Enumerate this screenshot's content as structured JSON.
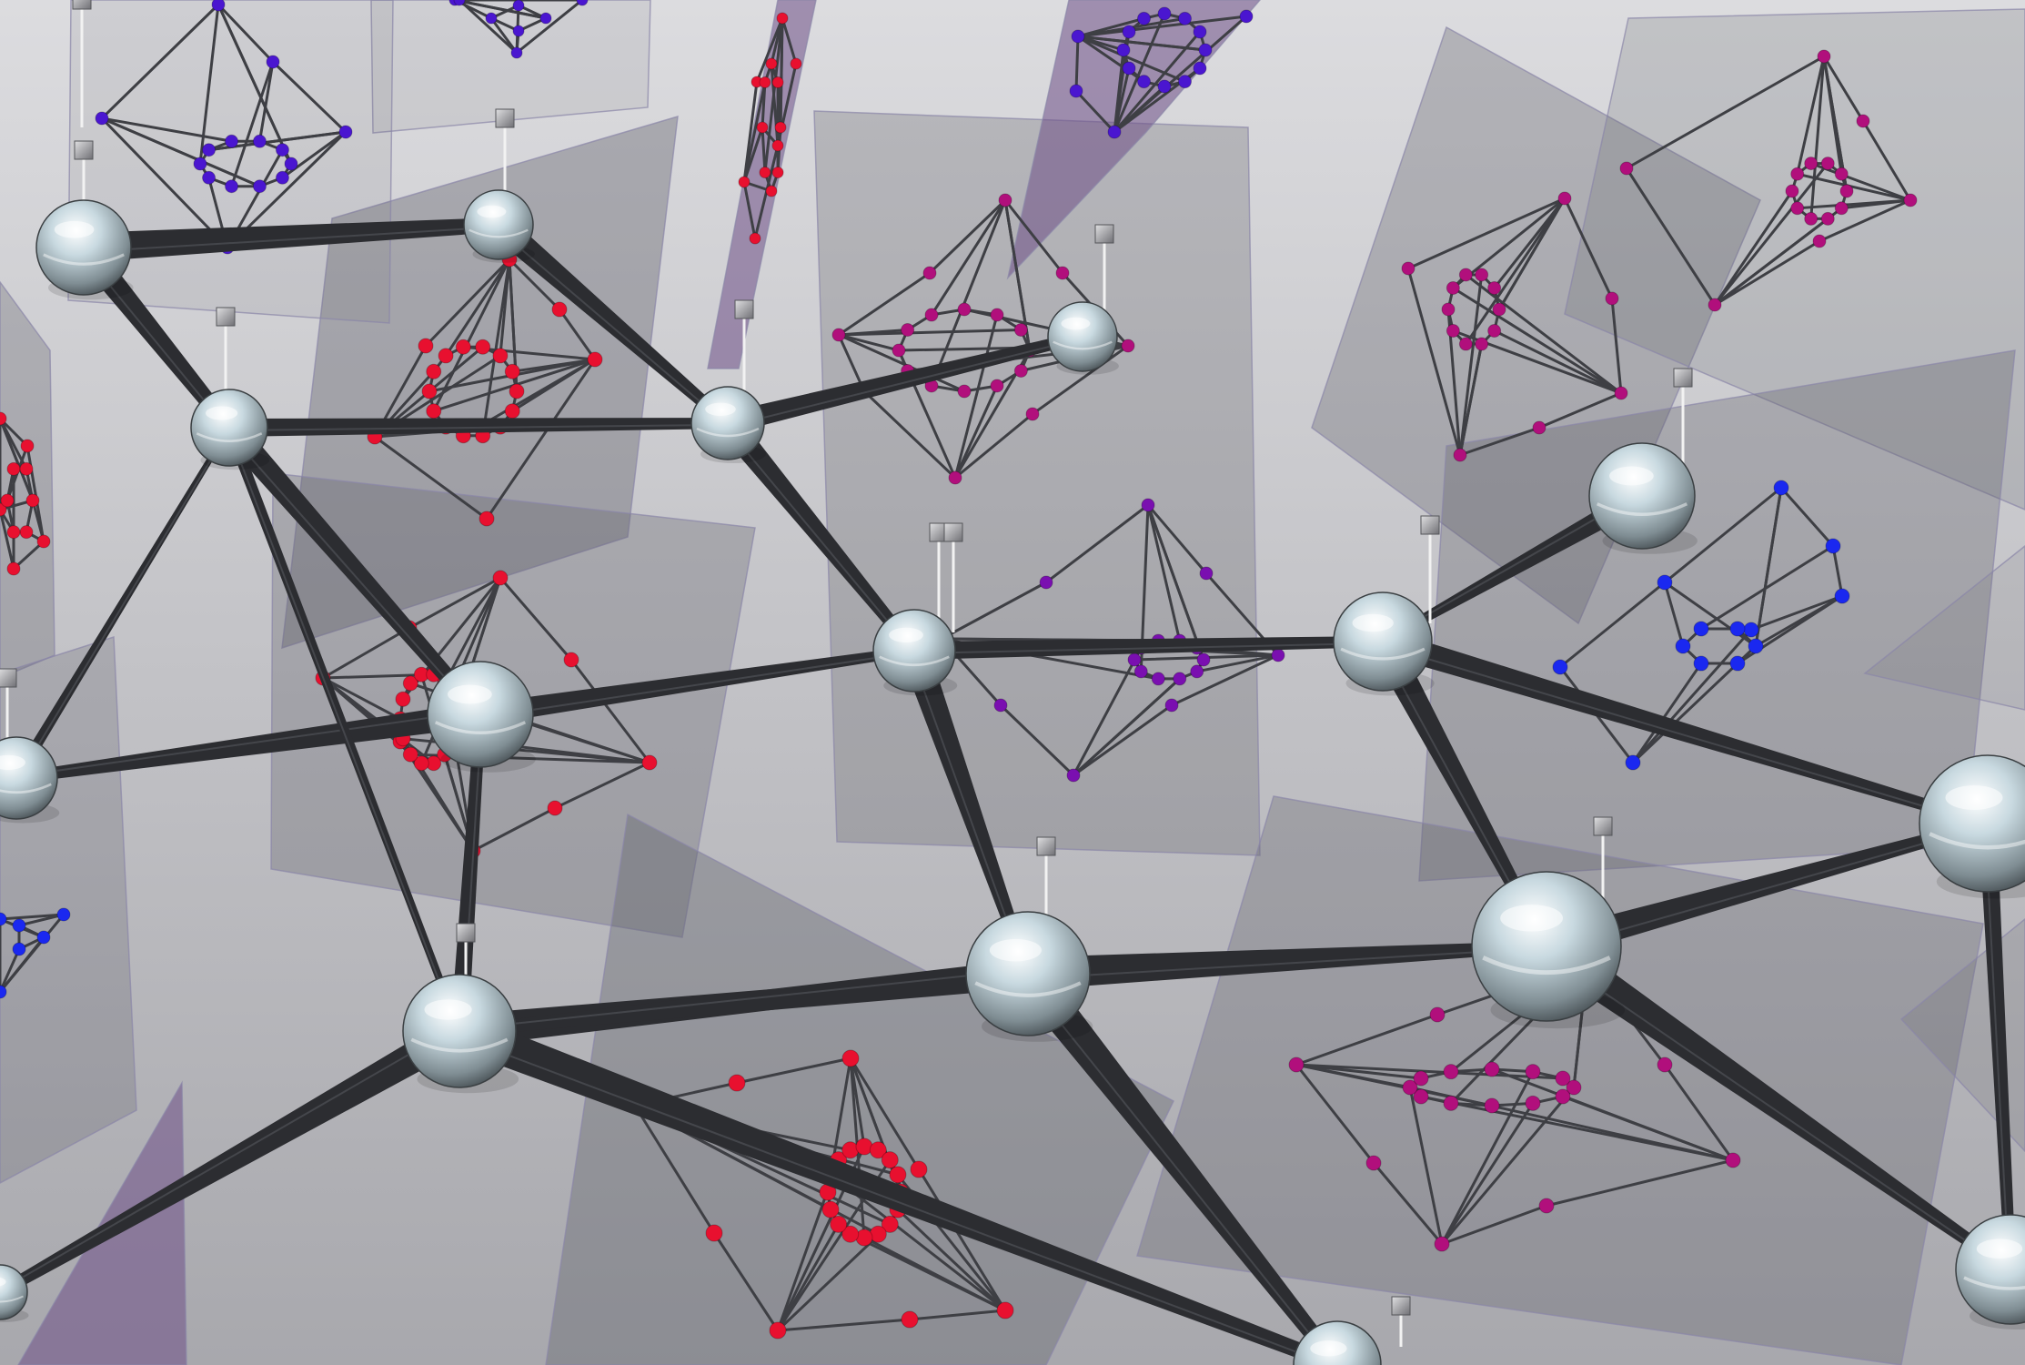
{
  "scene": {
    "description_free": true,
    "background": {
      "top": "#d9d9dc",
      "bottom": "#a9a9ae"
    },
    "colors": {
      "rod": "#2c2d31",
      "rod_highlight": "#55575d",
      "sphere_light": "#f4f8fa",
      "sphere_mid": "#b7c8d0",
      "sphere_dark": "#4f5a60",
      "plane_gray": "#5c5d66",
      "plane_violet": "#6e4f86",
      "plane_edge": "#8a86a8",
      "graph_edge": "#3e3f44",
      "red_node": "#e8102f",
      "magenta_node": "#b10f7c",
      "purple_node": "#7a0fb0",
      "indigo_node": "#4a16d0",
      "blue_node": "#1a28f0",
      "connector_cube": "#a9a9ad",
      "connector_line": "#f2f2f2"
    }
  }
}
